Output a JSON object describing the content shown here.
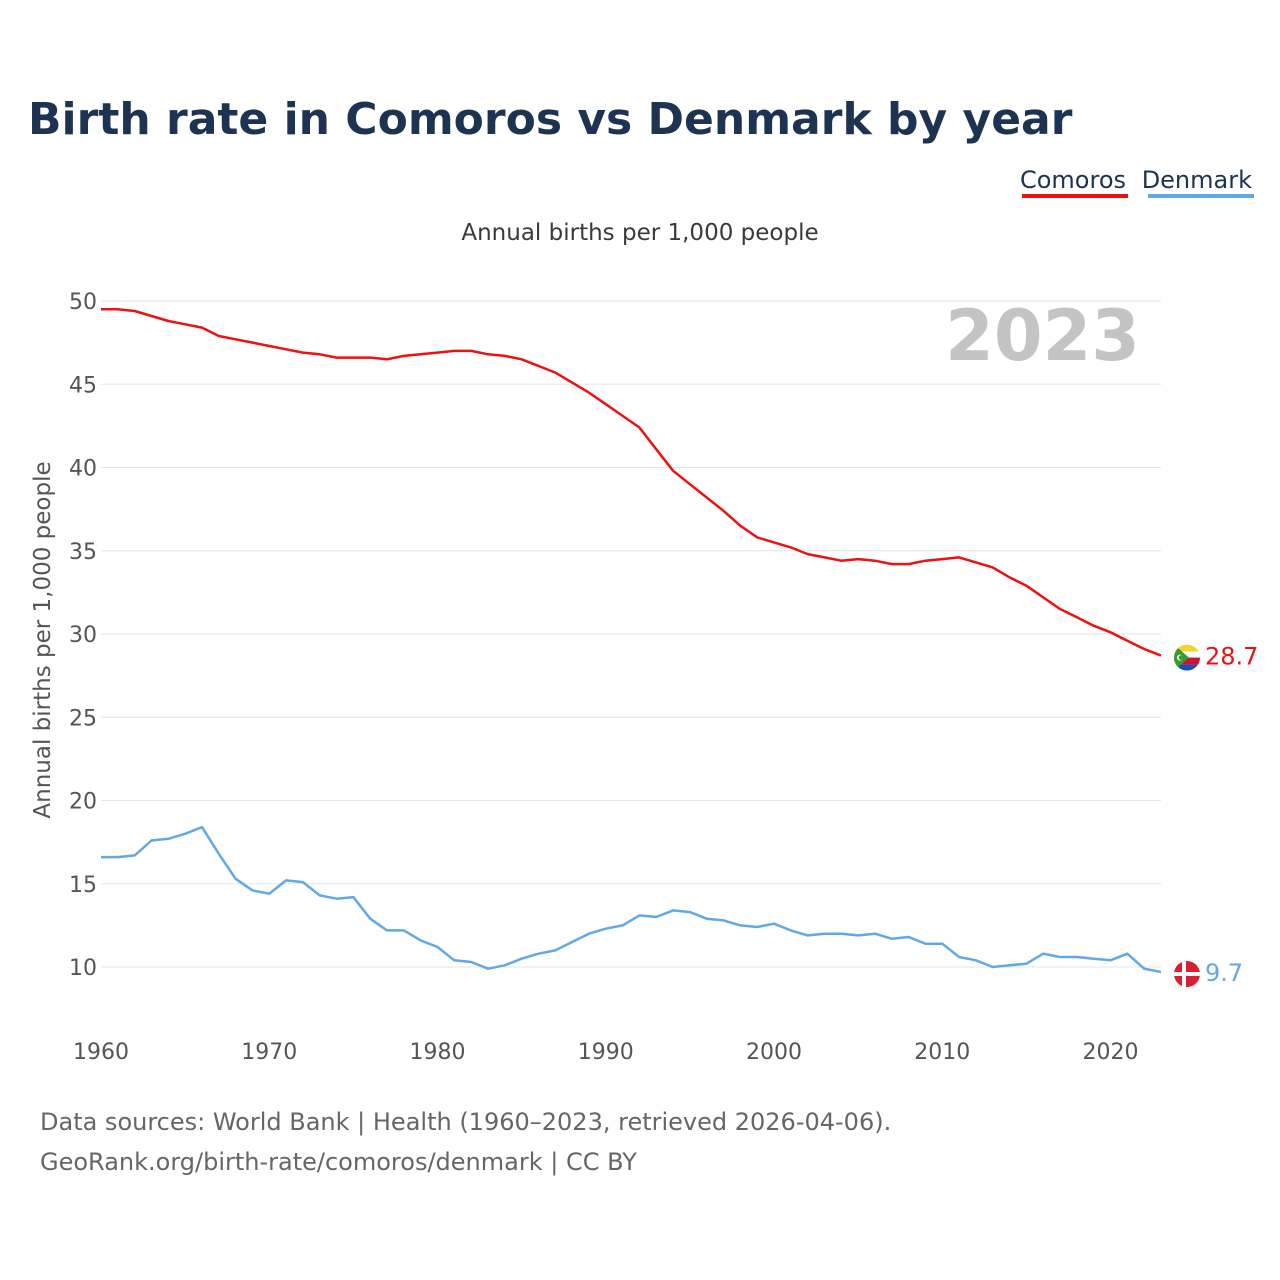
{
  "title": "Birth rate in Comoros vs Denmark by year",
  "subtitle": "Annual births per 1,000 people",
  "year_badge": "2023",
  "footer": {
    "line1": "Data sources: World Bank | Health (1960–2023, retrieved 2026-04-06).",
    "line2": "GeoRank.org/birth-rate/comoros/denmark | CC BY"
  },
  "legend": [
    {
      "name": "Comoros",
      "color": "#ee1111"
    },
    {
      "name": "Denmark",
      "color": "#62a8e5"
    }
  ],
  "chart_data": {
    "type": "line",
    "title": "Birth rate in Comoros vs Denmark by year",
    "subtitle": "Annual births per 1,000 people",
    "xlabel": "",
    "ylabel": "Annual births per 1,000 people",
    "xlim": [
      1960,
      2023
    ],
    "ylim": [
      7,
      50
    ],
    "x_ticks": [
      1960,
      1970,
      1980,
      1990,
      2000,
      2010,
      2020
    ],
    "y_ticks": [
      10,
      15,
      20,
      25,
      30,
      35,
      40,
      45,
      50
    ],
    "grid": true,
    "legend_position": "top-right",
    "x": [
      1960,
      1961,
      1962,
      1963,
      1964,
      1965,
      1966,
      1967,
      1968,
      1969,
      1970,
      1971,
      1972,
      1973,
      1974,
      1975,
      1976,
      1977,
      1978,
      1979,
      1980,
      1981,
      1982,
      1983,
      1984,
      1985,
      1986,
      1987,
      1988,
      1989,
      1990,
      1991,
      1992,
      1993,
      1994,
      1995,
      1996,
      1997,
      1998,
      1999,
      2000,
      2001,
      2002,
      2003,
      2004,
      2005,
      2006,
      2007,
      2008,
      2009,
      2010,
      2011,
      2012,
      2013,
      2014,
      2015,
      2016,
      2017,
      2018,
      2019,
      2020,
      2021,
      2022,
      2023
    ],
    "series": [
      {
        "name": "Comoros",
        "color": "#ee1111",
        "end_label": "28.7",
        "values": [
          49.5,
          49.5,
          49.4,
          49.1,
          48.8,
          48.6,
          48.4,
          47.9,
          47.7,
          47.5,
          47.3,
          47.1,
          46.9,
          46.8,
          46.6,
          46.6,
          46.6,
          46.5,
          46.7,
          46.8,
          46.9,
          47.0,
          47.0,
          46.8,
          46.7,
          46.5,
          46.1,
          45.7,
          45.1,
          44.5,
          43.8,
          43.1,
          42.4,
          41.1,
          39.8,
          39.0,
          38.2,
          37.4,
          36.5,
          35.8,
          35.5,
          35.2,
          34.8,
          34.6,
          34.4,
          34.5,
          34.4,
          34.2,
          34.2,
          34.4,
          34.5,
          34.6,
          34.3,
          34.0,
          33.4,
          32.9,
          32.2,
          31.5,
          31.0,
          30.5,
          30.1,
          29.6,
          29.1,
          28.7
        ]
      },
      {
        "name": "Denmark",
        "color": "#62a8e5",
        "end_label": "9.7",
        "values": [
          16.6,
          16.6,
          16.7,
          17.6,
          17.7,
          18.0,
          18.4,
          16.8,
          15.3,
          14.6,
          14.4,
          15.2,
          15.1,
          14.3,
          14.1,
          14.2,
          12.9,
          12.2,
          12.2,
          11.6,
          11.2,
          10.4,
          10.3,
          9.9,
          10.1,
          10.5,
          10.8,
          11.0,
          11.5,
          12.0,
          12.3,
          12.5,
          13.1,
          13.0,
          13.4,
          13.3,
          12.9,
          12.8,
          12.5,
          12.4,
          12.6,
          12.2,
          11.9,
          12.0,
          12.0,
          11.9,
          12.0,
          11.7,
          11.8,
          11.4,
          11.4,
          10.6,
          10.4,
          10.0,
          10.1,
          10.2,
          10.8,
          10.6,
          10.6,
          10.5,
          10.4,
          10.8,
          9.9,
          9.7
        ]
      }
    ]
  }
}
